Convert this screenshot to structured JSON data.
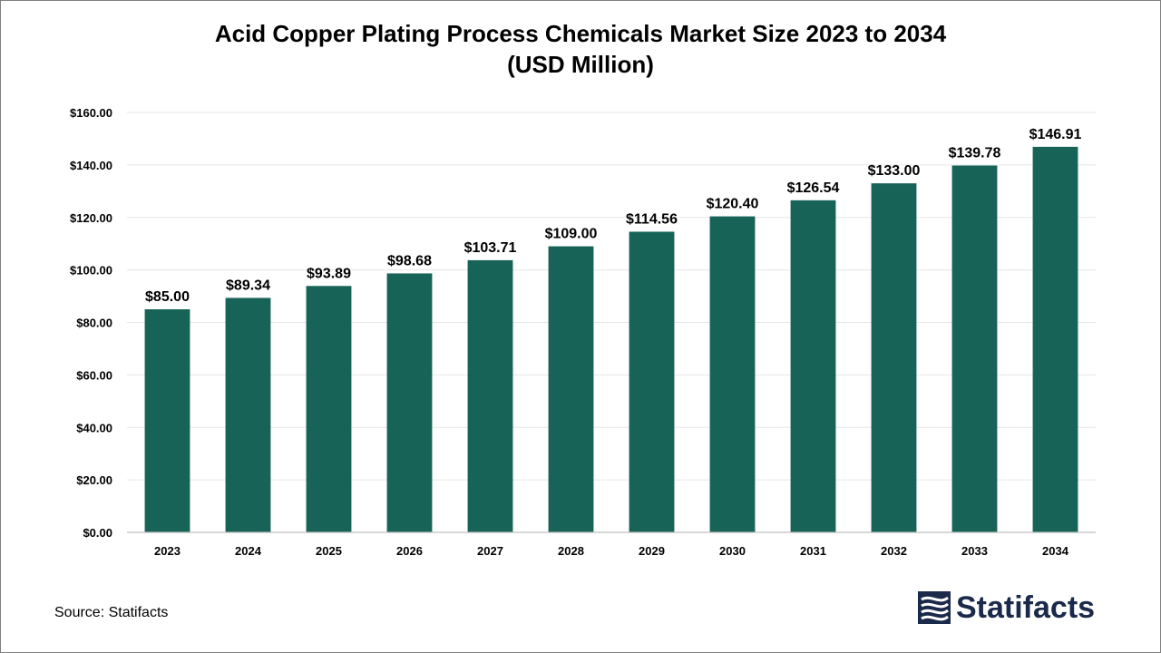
{
  "title_line1": "Acid Copper Plating Process Chemicals Market Size 2023 to 2034",
  "title_line2": "(USD Million)",
  "source": "Source: Statifacts",
  "logo_text": "Statifacts",
  "colors": {
    "bar": "#176358",
    "grid": "#e6e6e6",
    "axis": "#bfbfbf",
    "logo": "#1b2a4a"
  },
  "chart_data": {
    "type": "bar",
    "title": "Acid Copper Plating Process Chemicals Market Size 2023 to 2034 (USD Million)",
    "categories": [
      "2023",
      "2024",
      "2025",
      "2026",
      "2027",
      "2028",
      "2029",
      "2030",
      "2031",
      "2032",
      "2033",
      "2034"
    ],
    "values": [
      85.0,
      89.34,
      93.89,
      98.68,
      103.71,
      109.0,
      114.56,
      120.4,
      126.54,
      133.0,
      139.78,
      146.91
    ],
    "data_labels": [
      "$85.00",
      "$89.34",
      "$93.89",
      "$98.68",
      "$103.71",
      "$109.00",
      "$114.56",
      "$120.40",
      "$126.54",
      "$133.00",
      "$139.78",
      "$146.91"
    ],
    "ylim": [
      0,
      160
    ],
    "yticks": [
      0,
      20,
      40,
      60,
      80,
      100,
      120,
      140,
      160
    ],
    "ytick_labels": [
      "$0.00",
      "$20.00",
      "$40.00",
      "$60.00",
      "$80.00",
      "$100.00",
      "$120.00",
      "$140.00",
      "$160.00"
    ],
    "xlabel": "",
    "ylabel": "",
    "grid": true,
    "legend": "none"
  }
}
